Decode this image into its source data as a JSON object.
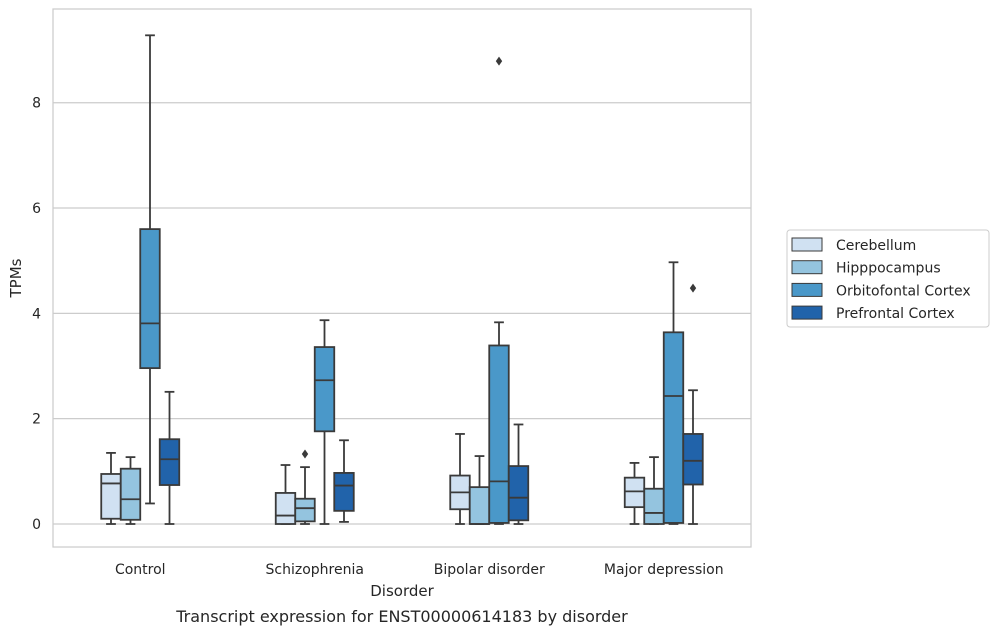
{
  "caption": "Transcript expression for ENST00000614183 by disorder",
  "chart_data": {
    "type": "box",
    "xlabel": "Disorder",
    "ylabel": "TPMs",
    "ylim": [
      -0.45,
      9.7
    ],
    "yticks": [
      0,
      2,
      4,
      6,
      8
    ],
    "grid": "horizontal",
    "legend_position": "right",
    "categories": [
      "Control",
      "Schizophrenia",
      "Bipolar disorder",
      "Major depression"
    ],
    "series": [
      {
        "name": "Cerebellum",
        "color": "#d0e1f2",
        "boxes": [
          {
            "whisker_low": 0,
            "q1": 0.1,
            "median": 0.77,
            "q3": 0.95,
            "whisker_high": 1.35,
            "outliers": []
          },
          {
            "whisker_low": 0,
            "q1": 0.0,
            "median": 0.16,
            "q3": 0.59,
            "whisker_high": 1.12,
            "outliers": []
          },
          {
            "whisker_low": 0,
            "q1": 0.28,
            "median": 0.6,
            "q3": 0.92,
            "whisker_high": 1.71,
            "outliers": []
          },
          {
            "whisker_low": 0,
            "q1": 0.32,
            "median": 0.62,
            "q3": 0.88,
            "whisker_high": 1.16,
            "outliers": []
          }
        ]
      },
      {
        "name": "Hipppocampus",
        "color": "#94c4df",
        "boxes": [
          {
            "whisker_low": 0,
            "q1": 0.08,
            "median": 0.47,
            "q3": 1.05,
            "whisker_high": 1.27,
            "outliers": []
          },
          {
            "whisker_low": 0,
            "q1": 0.05,
            "median": 0.3,
            "q3": 0.48,
            "whisker_high": 1.08,
            "outliers": [
              1.33
            ]
          },
          {
            "whisker_low": 0,
            "q1": 0.0,
            "median": 0.0,
            "q3": 0.7,
            "whisker_high": 1.29,
            "outliers": []
          },
          {
            "whisker_low": 0,
            "q1": 0.0,
            "median": 0.21,
            "q3": 0.67,
            "whisker_high": 1.27,
            "outliers": []
          }
        ]
      },
      {
        "name": "Orbitofontal Cortex",
        "color": "#4a98c9",
        "boxes": [
          {
            "whisker_low": 0.39,
            "q1": 2.96,
            "median": 3.81,
            "q3": 5.6,
            "whisker_high": 9.28,
            "outliers": []
          },
          {
            "whisker_low": 0,
            "q1": 1.76,
            "median": 2.73,
            "q3": 3.36,
            "whisker_high": 3.87,
            "outliers": []
          },
          {
            "whisker_low": 0,
            "q1": 0.02,
            "median": 0.81,
            "q3": 3.39,
            "whisker_high": 3.83,
            "outliers": [
              8.79
            ]
          },
          {
            "whisker_low": 0,
            "q1": 0.02,
            "median": 2.43,
            "q3": 3.64,
            "whisker_high": 4.97,
            "outliers": []
          }
        ]
      },
      {
        "name": "Prefrontal Cortex",
        "color": "#2163aa",
        "boxes": [
          {
            "whisker_low": 0,
            "q1": 0.74,
            "median": 1.23,
            "q3": 1.61,
            "whisker_high": 2.51,
            "outliers": []
          },
          {
            "whisker_low": 0.04,
            "q1": 0.25,
            "median": 0.73,
            "q3": 0.97,
            "whisker_high": 1.59,
            "outliers": []
          },
          {
            "whisker_low": 0,
            "q1": 0.07,
            "median": 0.5,
            "q3": 1.1,
            "whisker_high": 1.89,
            "outliers": []
          },
          {
            "whisker_low": 0,
            "q1": 0.75,
            "median": 1.2,
            "q3": 1.71,
            "whisker_high": 2.54,
            "outliers": [
              4.48
            ]
          }
        ]
      }
    ]
  }
}
